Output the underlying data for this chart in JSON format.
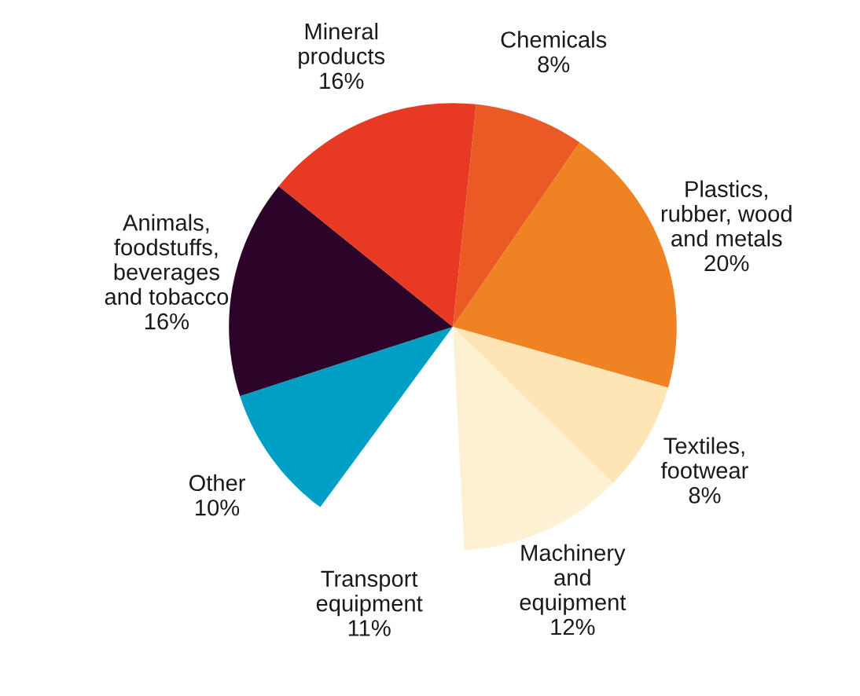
{
  "chart_data": {
    "type": "pie",
    "categories": [
      "Chemicals",
      "Plastics,\nrubber, wood\nand metals",
      "Textiles,\nfootwear",
      "Machinery\nand\nequipment",
      "Transport\nequipment",
      "Other",
      "Animals,\nfoodstuffs,\nbeverages\nand tobacco",
      "Mineral\nproducts"
    ],
    "values": [
      8,
      20,
      8,
      12,
      11,
      10,
      16,
      16
    ],
    "value_labels": [
      "8%",
      "20%",
      "8%",
      "12%",
      "11%",
      "10%",
      "16%",
      "16%"
    ],
    "colors": [
      "#e95a25",
      "#ef8222",
      "#fde5b6",
      "#fef0d2",
      "#ffffff",
      "#00a0c6",
      "#2c0329",
      "#e83a23"
    ]
  }
}
